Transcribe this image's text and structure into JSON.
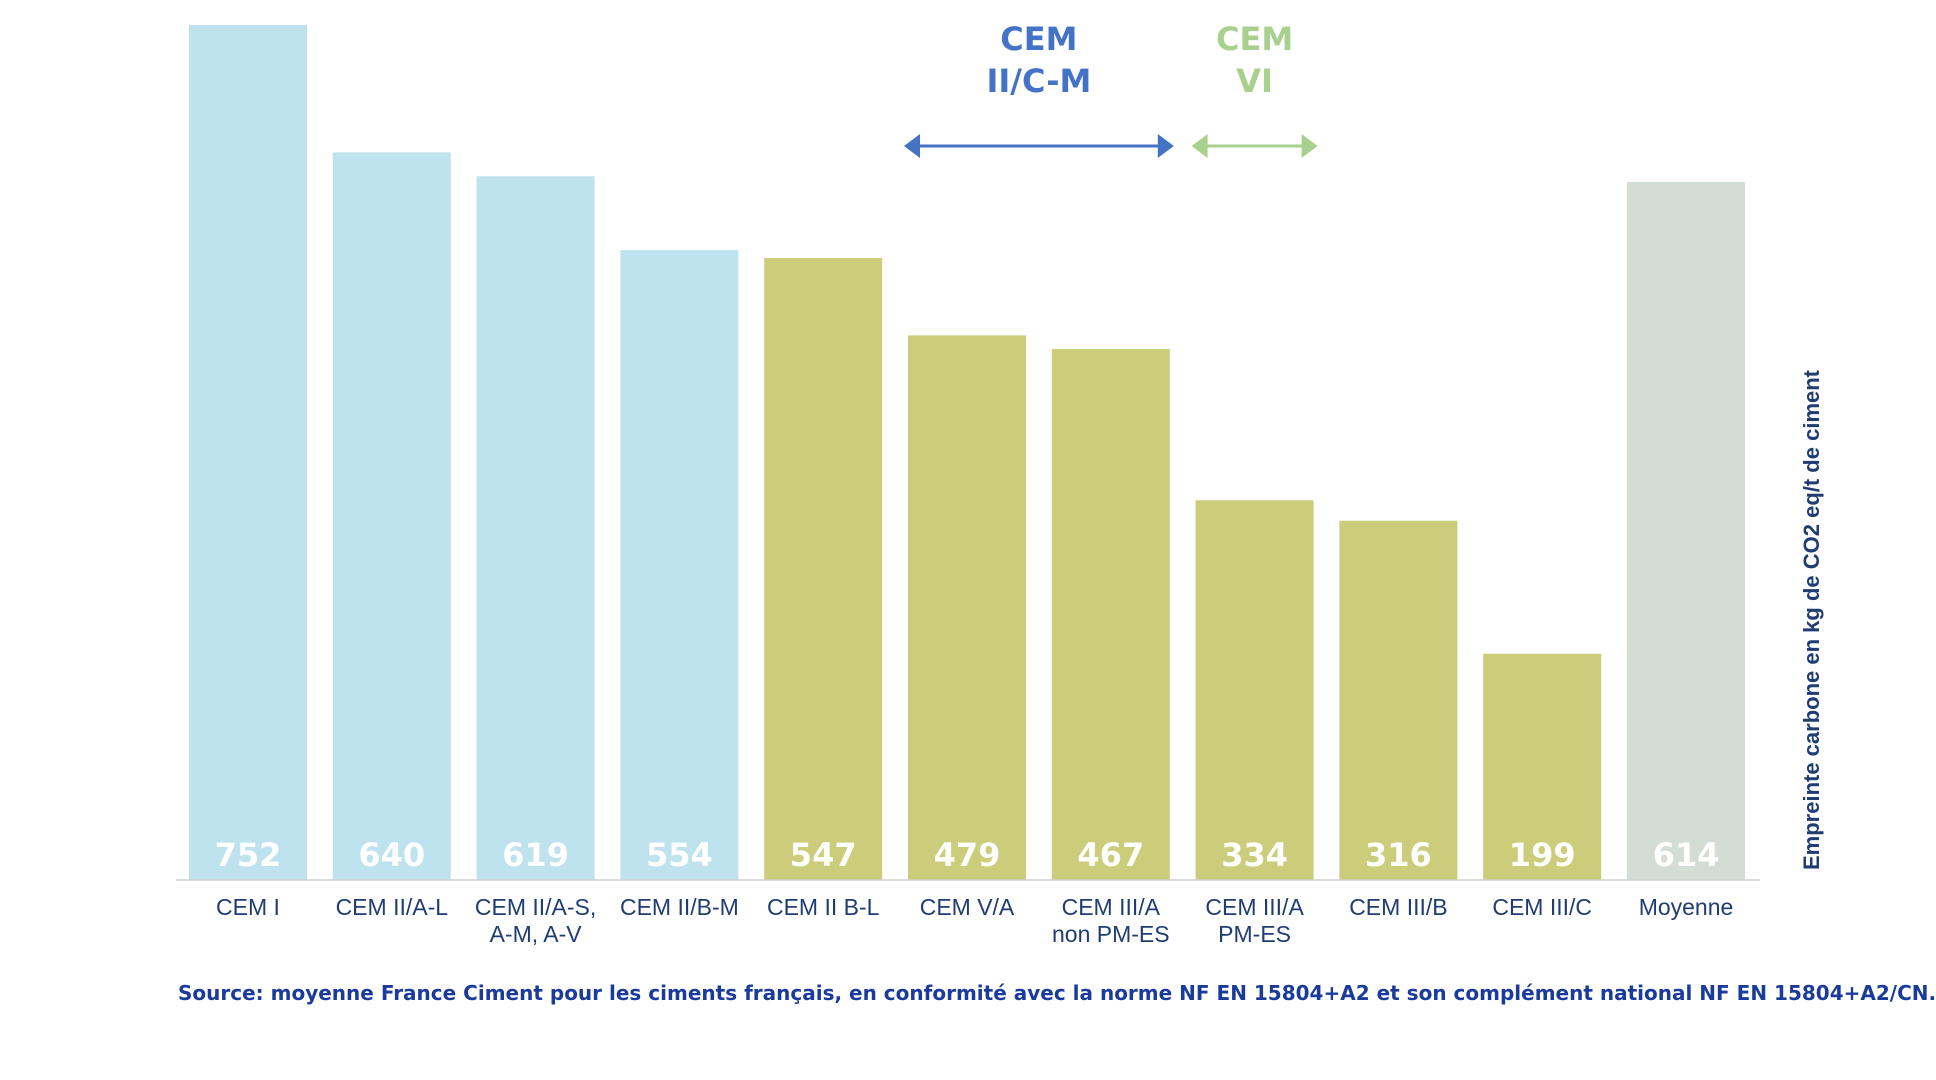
{
  "chart_data": {
    "type": "bar",
    "categories": [
      "CEM I",
      "CEM II/A-L",
      "CEM II/A-S,\nA-M, A-V",
      "CEM II/B-M",
      "CEM II B-L",
      "CEM V/A",
      "CEM III/A\nnon PM-ES",
      "CEM III/A\nPM-ES",
      "CEM III/B",
      "CEM III/C",
      "Moyenne"
    ],
    "values": [
      752,
      640,
      619,
      554,
      547,
      479,
      467,
      334,
      316,
      199,
      614
    ],
    "value_labels": [
      "752",
      "640",
      "619",
      "554",
      "547",
      "479",
      "467",
      "334",
      "316",
      "199",
      "614"
    ],
    "bar_colors": [
      "#bfe3ee",
      "#bfe3ee",
      "#bfe3ee",
      "#bfe3ee",
      "#cccd7b",
      "#cccd7b",
      "#cccd7b",
      "#cccd7b",
      "#cccd7b",
      "#cccd7b",
      "#d3ddd6"
    ],
    "ylabel": "Empreinte carbone en kg de CO2 eq/t de ciment",
    "xlabel": "",
    "ylim": [
      0,
      752
    ],
    "grid": false,
    "annotations": [
      {
        "text": "CEM\nII/C-M",
        "color": "#4472c4",
        "span": [
          "CEM V/A",
          "CEM III/A\nnon PM-ES"
        ],
        "kind": "double-arrow"
      },
      {
        "text": "CEM\nVI",
        "color": "#a9d18e",
        "span": [
          "CEM III/A\nPM-ES"
        ],
        "kind": "double-arrow"
      }
    ]
  },
  "source": "Source: moyenne France Ciment pour les ciments français, en conformité avec la norme NF EN 15804+A2 et son complément national NF EN 15804+A2/CN."
}
